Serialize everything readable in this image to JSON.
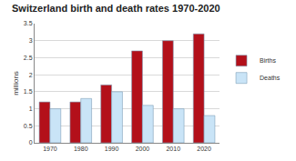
{
  "chart_data": {
    "type": "bar",
    "title": "Switzerland birth and death rates 1970-2020",
    "y_label": "millions",
    "categories": [
      "1970",
      "1980",
      "1990",
      "2000",
      "2010",
      "2020"
    ],
    "series": [
      {
        "name": "Births",
        "color": "#b3101a",
        "values": [
          1.2,
          1.2,
          1.7,
          2.7,
          3.0,
          3.2
        ]
      },
      {
        "name": "Deaths",
        "color": "#c9e4f7",
        "values": [
          1.0,
          1.3,
          1.5,
          1.1,
          1.0,
          0.8
        ]
      }
    ],
    "ylim": [
      0,
      3.5
    ],
    "yticks": [
      0,
      0.5,
      1,
      1.5,
      2,
      2.5,
      3,
      3.5
    ],
    "grid": true,
    "legend": "right"
  }
}
